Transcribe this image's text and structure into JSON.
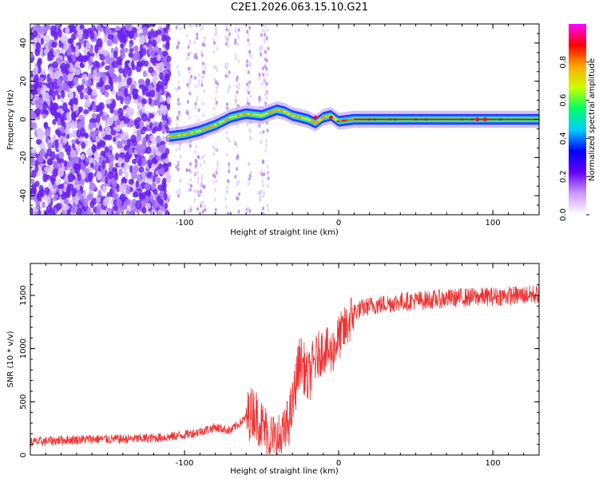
{
  "title": "C2E1.2026.063.15.10.G21",
  "chart_data": [
    {
      "type": "heatmap",
      "title": "C2E1.2026.063.15.10.G21",
      "xlabel": "Height of straight line (km)",
      "ylabel": "Frequency (Hz)",
      "xlim": [
        -200,
        130
      ],
      "ylim": [
        -50,
        50
      ],
      "x_ticks": [
        -100,
        0,
        100
      ],
      "y_ticks": [
        -40,
        -20,
        0,
        20,
        40
      ],
      "colorbar": {
        "label": "Normalized spectral amplitude",
        "range": [
          0.0,
          1.0
        ],
        "ticks": [
          0.0,
          0.2,
          0.4,
          0.6,
          0.8
        ],
        "tick_labels": [
          "0.0",
          "0.2",
          "0.4",
          "0.6",
          "0.8"
        ],
        "colormap": [
          "#ffffff",
          "#cc99ff",
          "#6600ff",
          "#0000ff",
          "#00ccff",
          "#00ff66",
          "#ccff00",
          "#ffaa00",
          "#ff0000",
          "#ff00ff"
        ]
      },
      "ridge": {
        "x": [
          -110,
          -100,
          -90,
          -80,
          -70,
          -60,
          -50,
          -40,
          -35,
          -30,
          -25,
          -20,
          -15,
          -10,
          -5,
          0,
          10,
          20,
          40,
          60,
          80,
          100,
          130
        ],
        "freq": [
          -9,
          -8,
          -6,
          -3,
          1,
          3,
          2,
          5,
          4,
          2,
          1,
          0,
          -2,
          1,
          2,
          -1,
          0,
          0,
          0,
          0,
          0,
          0,
          0
        ]
      }
    },
    {
      "type": "line",
      "xlabel": "Height of straight line (km)",
      "ylabel": "SNR (10 * v/v)",
      "xlim": [
        -200,
        130
      ],
      "ylim": [
        0,
        1800
      ],
      "x_ticks": [
        -100,
        0,
        100
      ],
      "y_ticks": [
        0,
        500,
        1000,
        1500
      ],
      "series": [
        {
          "name": "SNR",
          "color": "#ee3333",
          "x": [
            -200,
            -180,
            -160,
            -140,
            -120,
            -110,
            -100,
            -90,
            -80,
            -70,
            -60,
            -55,
            -50,
            -45,
            -40,
            -35,
            -30,
            -27,
            -25,
            -22,
            -20,
            -17,
            -15,
            -10,
            -5,
            0,
            5,
            10,
            20,
            30,
            40,
            60,
            80,
            100,
            115,
            130
          ],
          "y": [
            120,
            140,
            150,
            150,
            160,
            170,
            190,
            220,
            260,
            230,
            350,
            420,
            280,
            180,
            120,
            200,
            450,
            750,
            900,
            800,
            700,
            820,
            900,
            1000,
            950,
            1100,
            1200,
            1350,
            1400,
            1420,
            1440,
            1460,
            1480,
            1490,
            1500,
            1510
          ]
        }
      ]
    }
  ]
}
